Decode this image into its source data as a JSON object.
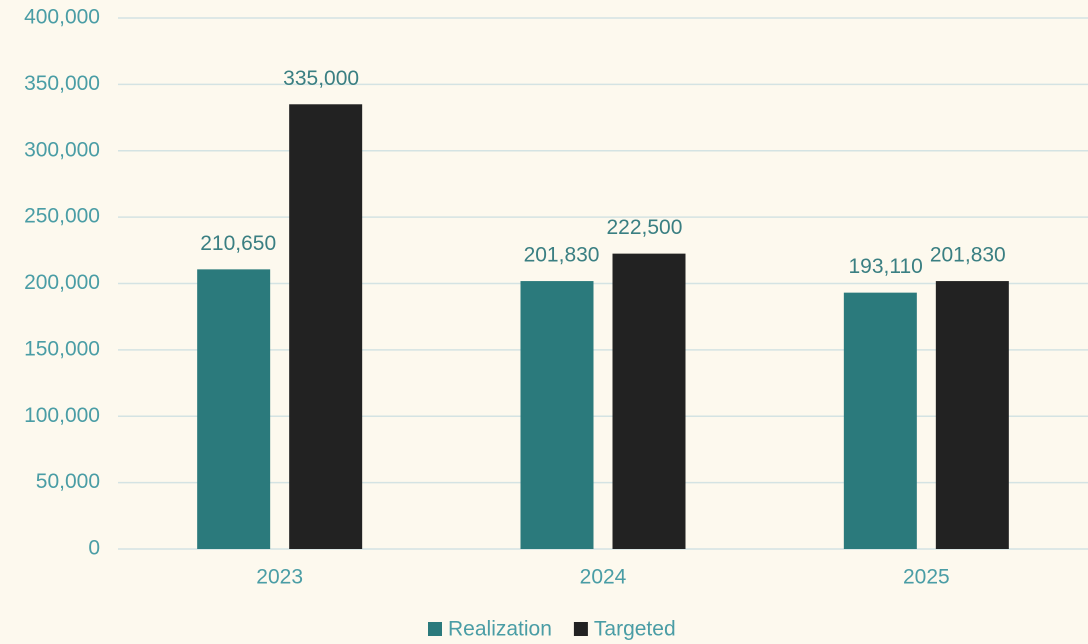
{
  "chart_data": {
    "type": "bar",
    "categories": [
      "2023",
      "2024",
      "2025"
    ],
    "series": [
      {
        "name": "Realization",
        "color": "#2b7a7c",
        "values": [
          210650,
          201830,
          193110
        ],
        "value_labels": [
          "210,650",
          "201,830",
          "193,110"
        ]
      },
      {
        "name": "Targeted",
        "color": "#222222",
        "values": [
          335000,
          222500,
          201830
        ],
        "value_labels": [
          "335,000",
          "222,500",
          "201,830"
        ]
      }
    ],
    "ylim": [
      0,
      400000
    ],
    "yticks": [
      0,
      {
        "value": 50000,
        "label": "50,000"
      },
      {
        "value": 100000,
        "label": "100,000"
      },
      {
        "value": 150000,
        "label": "150,000"
      },
      {
        "value": 200000,
        "label": "200,000"
      },
      {
        "value": 250000,
        "label": "250,000"
      },
      {
        "value": 300000,
        "label": "300,000"
      },
      {
        "value": 350000,
        "label": "350,000"
      },
      {
        "value": 400000,
        "label": "400,000"
      }
    ],
    "grid": true,
    "legend": "bottom"
  }
}
